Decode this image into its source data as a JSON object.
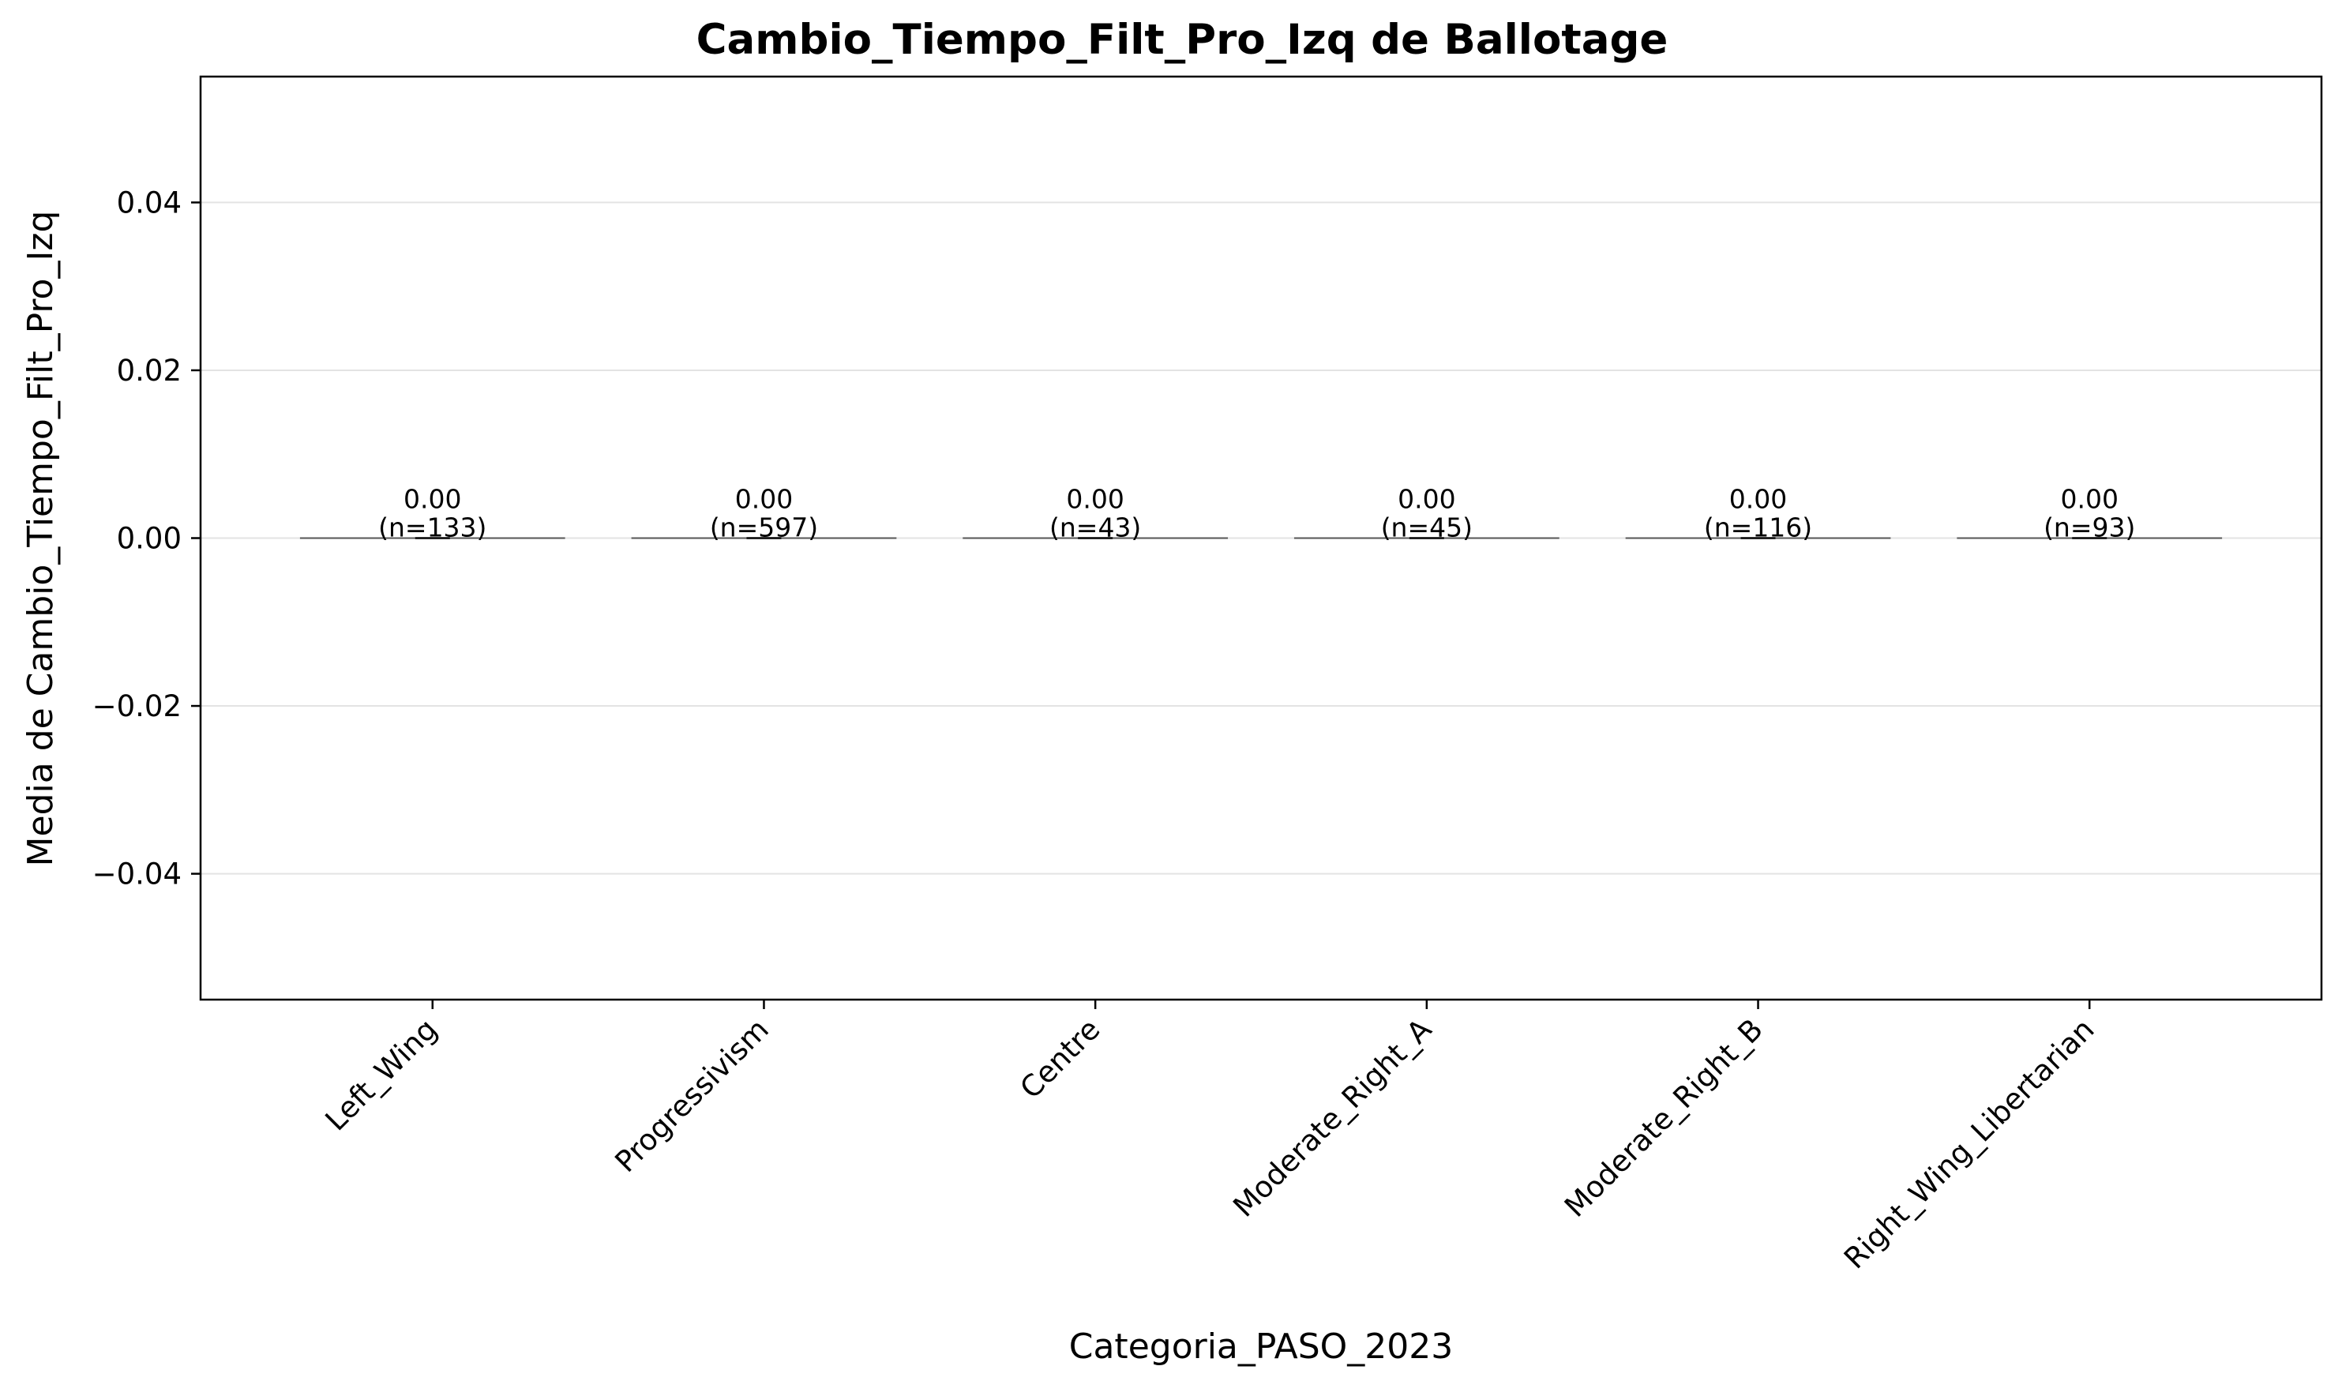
{
  "chart_data": {
    "type": "bar",
    "title": "Cambio_Tiempo_Filt_Pro_Izq de Ballotage",
    "xlabel": "Categoria_PASO_2023",
    "ylabel": "Media de Cambio_Tiempo_Filt_Pro_Izq",
    "categories": [
      "Left_Wing",
      "Progressivism",
      "Centre",
      "Moderate_Right_A",
      "Moderate_Right_B",
      "Right_Wing_Libertarian"
    ],
    "values": [
      0.0,
      0.0,
      0.0,
      0.0,
      0.0,
      0.0
    ],
    "value_labels": [
      "0.00",
      "0.00",
      "0.00",
      "0.00",
      "0.00",
      "0.00"
    ],
    "counts": [
      "(n=133)",
      "(n=597)",
      "(n=43)",
      "(n=45)",
      "(n=116)",
      "(n=93)"
    ],
    "error": [
      0.0,
      0.0,
      0.0,
      0.0,
      0.0,
      0.0
    ],
    "ylim": [
      -0.055,
      0.055
    ],
    "yticks": [
      -0.04,
      -0.02,
      0.0,
      0.02,
      0.04
    ],
    "ytick_labels": [
      "−0.04",
      "−0.02",
      "0.00",
      "0.02",
      "0.04"
    ],
    "grid": "y",
    "bar_edge_color": "#555555",
    "grid_color": "#e3e3e3"
  }
}
